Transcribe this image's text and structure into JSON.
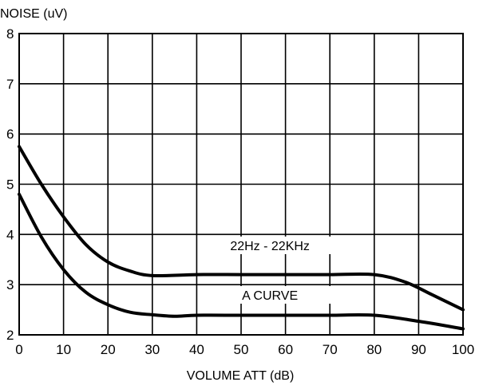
{
  "chart_data": {
    "type": "line",
    "ylabel": "NOISE (uV)",
    "xlabel": "VOLUME ATT (dB)",
    "xlim": [
      0,
      100
    ],
    "ylim": [
      2,
      8
    ],
    "grid": true,
    "x_ticks": [
      "0",
      "10",
      "20",
      "30",
      "40",
      "50",
      "60",
      "70",
      "80",
      "90",
      "100"
    ],
    "y_ticks": [
      "2",
      "3",
      "4",
      "5",
      "6",
      "7",
      "8"
    ],
    "annotations": [
      "22Hz - 22KHz",
      "A CURVE"
    ],
    "series": [
      {
        "name": "22Hz - 22KHz",
        "x": [
          0,
          5,
          10,
          15,
          20,
          25,
          30,
          40,
          50,
          60,
          70,
          80,
          87,
          93,
          100
        ],
        "y": [
          5.75,
          5.0,
          4.35,
          3.8,
          3.45,
          3.27,
          3.18,
          3.2,
          3.2,
          3.2,
          3.2,
          3.2,
          3.05,
          2.8,
          2.5
        ]
      },
      {
        "name": "A CURVE",
        "x": [
          0,
          5,
          10,
          15,
          20,
          25,
          30,
          35,
          40,
          50,
          60,
          70,
          80,
          90,
          100
        ],
        "y": [
          4.8,
          3.95,
          3.3,
          2.85,
          2.6,
          2.45,
          2.4,
          2.37,
          2.39,
          2.39,
          2.39,
          2.39,
          2.39,
          2.27,
          2.12
        ]
      }
    ]
  }
}
